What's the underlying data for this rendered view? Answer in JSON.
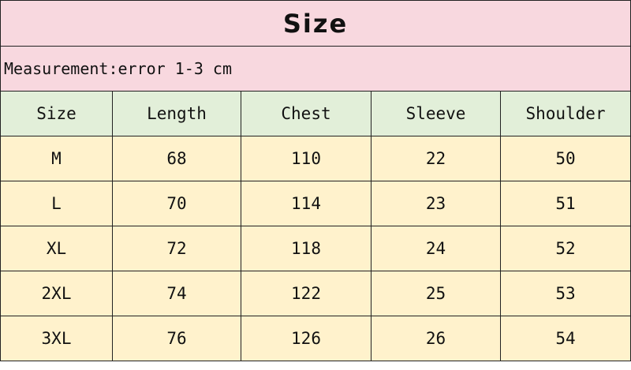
{
  "title": "Size",
  "note": "Measurement:error 1-3 cm",
  "colors": {
    "title_bg": "#f8d8df",
    "header_bg": "#e2efd9",
    "row_bg": "#fff2cc"
  },
  "headers": [
    "Size",
    "Length",
    "Chest",
    "Sleeve",
    "Shoulder"
  ],
  "rows": [
    [
      "M",
      "68",
      "110",
      "22",
      "50"
    ],
    [
      "L",
      "70",
      "114",
      "23",
      "51"
    ],
    [
      "XL",
      "72",
      "118",
      "24",
      "52"
    ],
    [
      "2XL",
      "74",
      "122",
      "25",
      "53"
    ],
    [
      "3XL",
      "76",
      "126",
      "26",
      "54"
    ]
  ]
}
